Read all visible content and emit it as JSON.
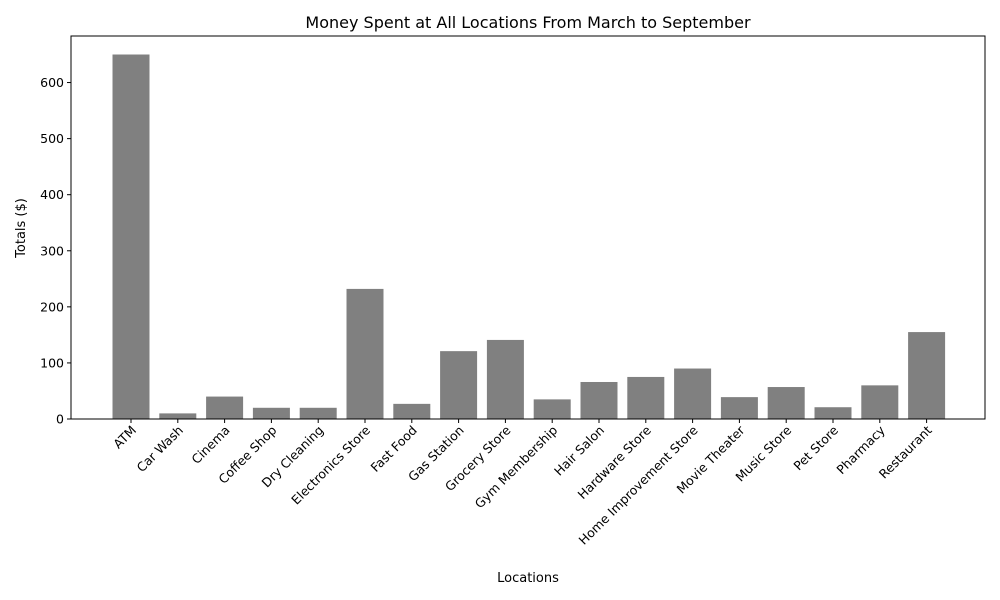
{
  "chart_data": {
    "type": "bar",
    "title": "Money Spent at All Locations From March to September",
    "xlabel": "Locations",
    "ylabel": "Totals ($)",
    "ylim": [
      0,
      683
    ],
    "yticks": [
      0,
      100,
      200,
      300,
      400,
      500,
      600
    ],
    "grid": false,
    "bar_color": "#808080",
    "categories": [
      "ATM",
      "Car Wash",
      "Cinema",
      "Coffee Shop",
      "Dry Cleaning",
      "Electronics Store",
      "Fast Food",
      "Gas Station",
      "Grocery Store",
      "Gym Membership",
      "Hair Salon",
      "Hardware Store",
      "Home Improvement Store",
      "Movie Theater",
      "Music Store",
      "Pet Store",
      "Pharmacy",
      "Restaurant"
    ],
    "values": [
      650,
      10,
      40,
      20,
      20,
      232,
      27,
      121,
      141,
      35,
      66,
      75,
      90,
      39,
      57,
      21,
      60,
      155
    ]
  }
}
